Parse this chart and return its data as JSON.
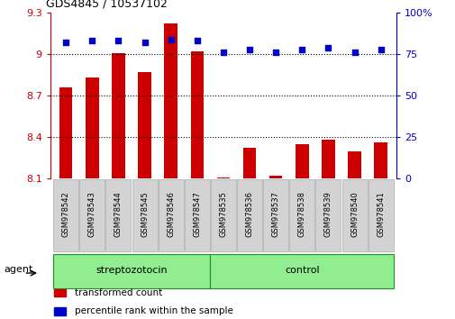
{
  "title": "GDS4845 / 10537102",
  "samples": [
    "GSM978542",
    "GSM978543",
    "GSM978544",
    "GSM978545",
    "GSM978546",
    "GSM978547",
    "GSM978535",
    "GSM978536",
    "GSM978537",
    "GSM978538",
    "GSM978539",
    "GSM978540",
    "GSM978541"
  ],
  "bar_values": [
    8.76,
    8.83,
    9.01,
    8.87,
    9.22,
    9.02,
    8.11,
    8.32,
    8.12,
    8.35,
    8.38,
    8.3,
    8.36
  ],
  "dot_values": [
    82,
    83,
    83,
    82,
    84,
    83,
    76,
    78,
    76,
    78,
    79,
    76,
    78
  ],
  "groups": [
    {
      "label": "streptozotocin",
      "start": 0,
      "end": 6
    },
    {
      "label": "control",
      "start": 6,
      "end": 13
    }
  ],
  "group_label": "agent",
  "ylim_left": [
    8.1,
    9.3
  ],
  "ylim_right": [
    0,
    100
  ],
  "yticks_left": [
    8.1,
    8.4,
    8.7,
    9.0,
    9.3
  ],
  "yticks_right": [
    0,
    25,
    50,
    75,
    100
  ],
  "ytick_labels_left": [
    "8.1",
    "8.4",
    "8.7",
    "9",
    "9.3"
  ],
  "ytick_labels_right": [
    "0",
    "25",
    "50",
    "75",
    "100%"
  ],
  "bar_color": "#CC0000",
  "dot_color": "#0000CC",
  "bar_baseline": 8.1,
  "green_color": "#90EE90",
  "green_edge": "#228B22",
  "gray_color": "#d3d3d3",
  "legend_items": [
    {
      "label": "transformed count",
      "color": "#CC0000"
    },
    {
      "label": "percentile rank within the sample",
      "color": "#0000CC"
    }
  ]
}
